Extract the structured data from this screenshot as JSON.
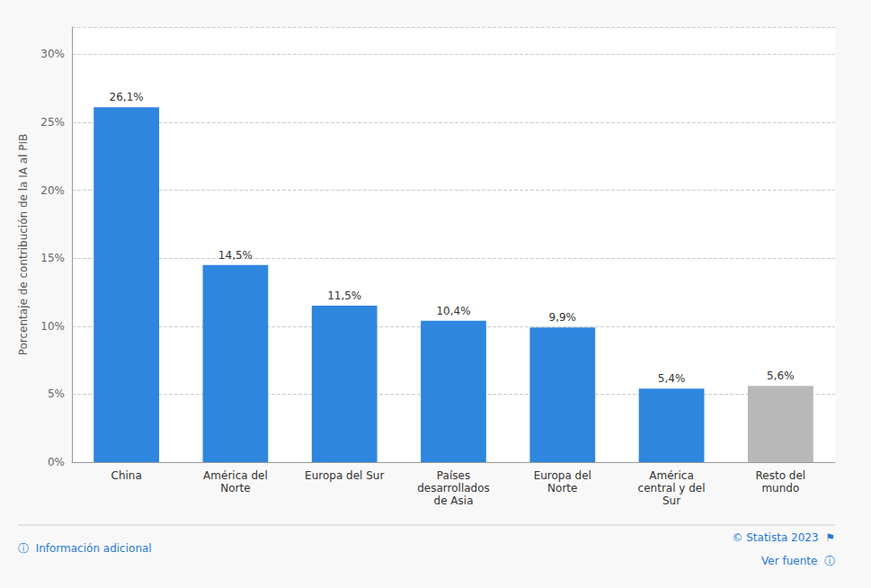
{
  "chart_data": {
    "type": "bar",
    "categories": [
      "China",
      "América del\nNorte",
      "Europa del Sur",
      "Países\ndesarrollados\nde Asia",
      "Europa del\nNorte",
      "América\ncentral y del\nSur",
      "Resto del\nmundo"
    ],
    "values": [
      26.1,
      14.5,
      11.5,
      10.4,
      9.9,
      5.4,
      5.6
    ],
    "value_labels": [
      "26,1%",
      "14,5%",
      "11,5%",
      "10,4%",
      "9,9%",
      "5,4%",
      "5,6%"
    ],
    "data_labels": true,
    "colors": [
      "#2e86de",
      "#2e86de",
      "#2e86de",
      "#2e86de",
      "#2e86de",
      "#2e86de",
      "#b8b8b8"
    ],
    "ylabel": "Porcentaje de contribución de la IA al PIB",
    "ylim": [
      0,
      32
    ],
    "yticks": [
      {
        "value": 0,
        "label": "0%"
      },
      {
        "value": 5,
        "label": "5%"
      },
      {
        "value": 10,
        "label": "10%"
      },
      {
        "value": 15,
        "label": "15%"
      },
      {
        "value": 20,
        "label": "20%"
      },
      {
        "value": 25,
        "label": "25%"
      },
      {
        "value": 30,
        "label": "30%"
      }
    ],
    "grid": true,
    "annotations": [
      "ⓘ  Información adicional",
      "© Statista 2023  ⚑",
      "Ver fuente  ⓘ"
    ]
  }
}
